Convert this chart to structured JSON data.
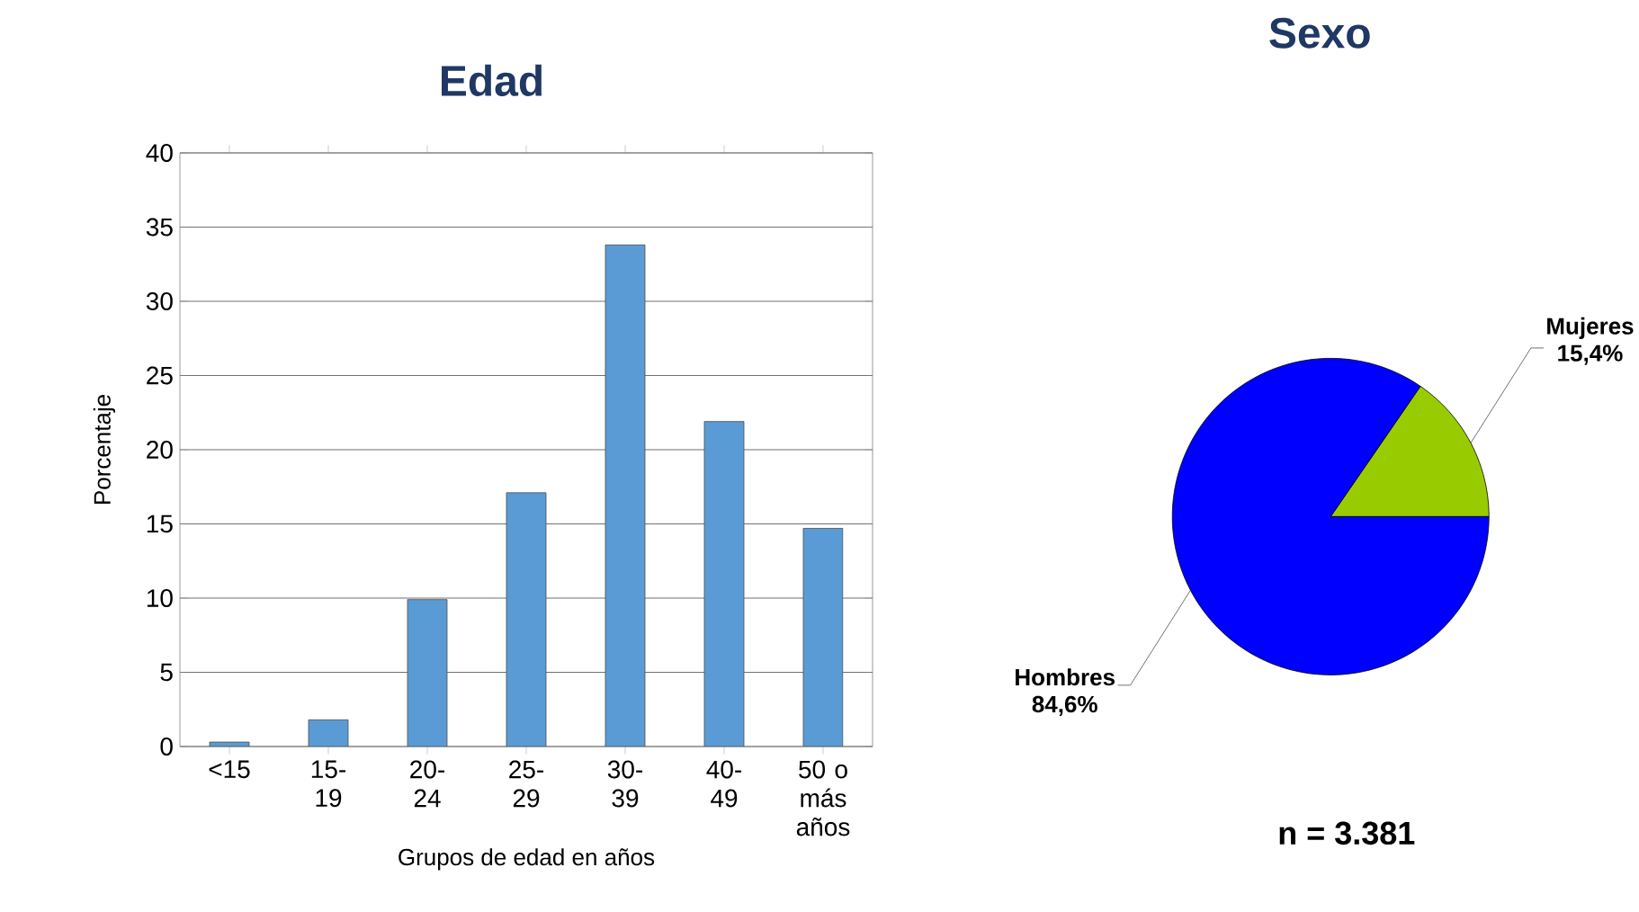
{
  "chart_data": [
    {
      "type": "bar",
      "title": "Edad",
      "xlabel": "Grupos de edad en años",
      "ylabel": "Porcentaje",
      "categories": [
        "<15",
        "15-19",
        "20-24",
        "25-29",
        "30-39",
        "40-49",
        "50 o más años"
      ],
      "values": [
        0.3,
        1.8,
        9.9,
        17.1,
        33.8,
        21.9,
        14.7
      ],
      "color": "#5b9bd5",
      "ylim": [
        0,
        40
      ],
      "yticks": [
        0,
        5,
        10,
        15,
        20,
        25,
        30,
        35,
        40
      ],
      "grid": "y"
    },
    {
      "type": "pie",
      "title": "Sexo",
      "categories": [
        "Mujeres",
        "Hombres"
      ],
      "values": [
        15.4,
        84.6
      ],
      "colors": [
        "#99cc00",
        "#0000ff"
      ],
      "value_labels": [
        "15,4%",
        "84,6%"
      ],
      "annotations": [
        "n = 3.381"
      ]
    }
  ]
}
